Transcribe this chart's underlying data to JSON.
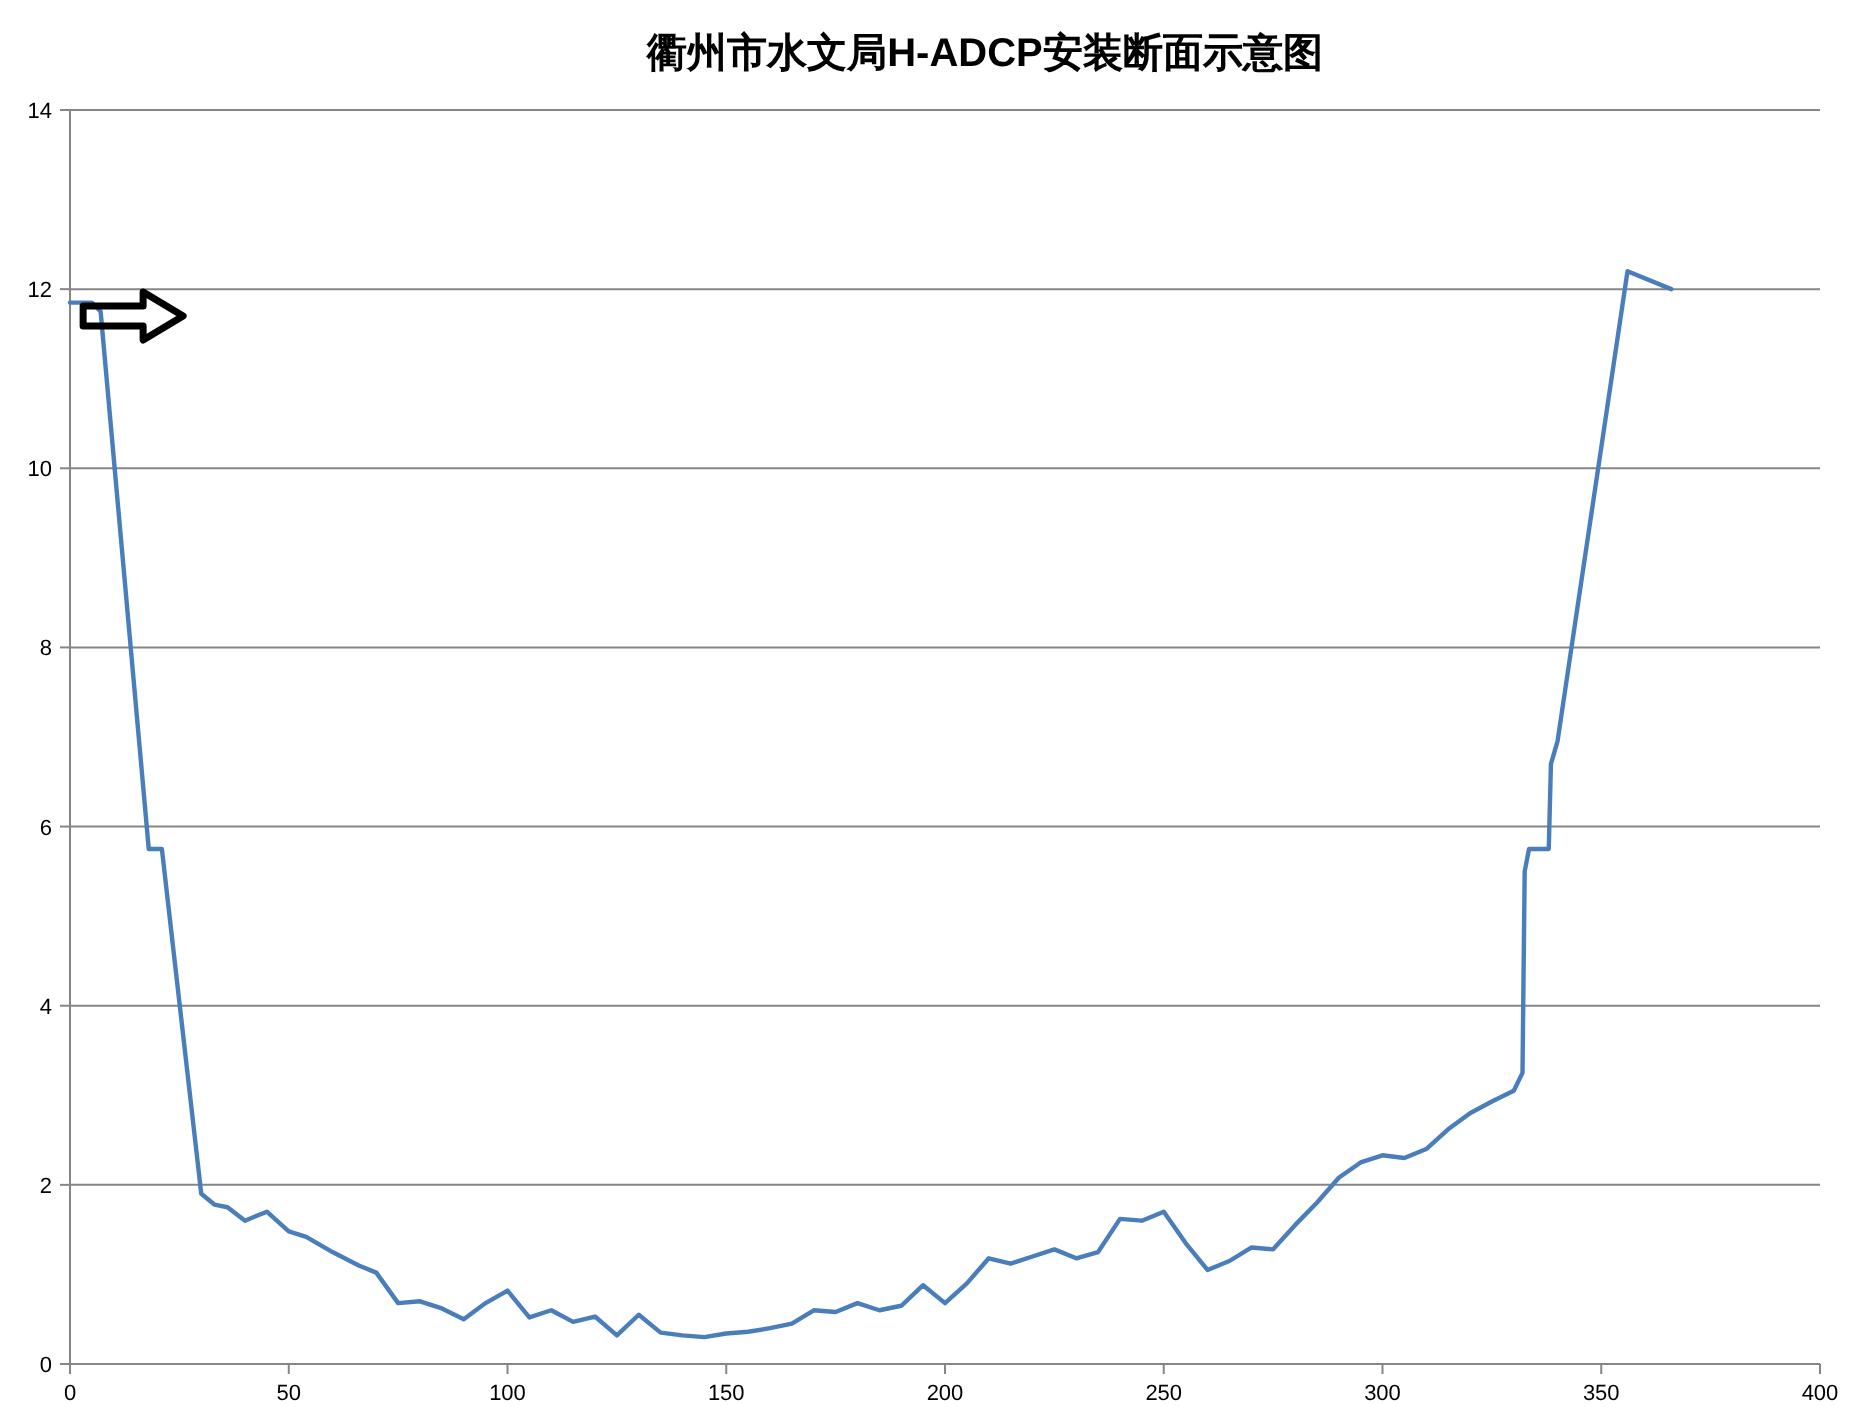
{
  "chart_data": {
    "type": "line",
    "title": "衢州市水文局H-ADCP安装断面示意图",
    "xlim": [
      0,
      400
    ],
    "xticks": [
      0,
      50,
      100,
      150,
      200,
      250,
      300,
      350,
      400
    ],
    "ylim": [
      0,
      14
    ],
    "yticks": [
      0,
      2,
      4,
      6,
      8,
      10,
      12,
      14
    ],
    "grid": "y",
    "marker": "none",
    "line_style": "solid",
    "series": [
      {
        "color": "#4a7ebb",
        "x": [
          0,
          5,
          7,
          18,
          21,
          30,
          33,
          36,
          40,
          45,
          50,
          54,
          60,
          66,
          70,
          75,
          80,
          85,
          90,
          95,
          100,
          105,
          110,
          115,
          120,
          125,
          130,
          135,
          140,
          145,
          150,
          155,
          160,
          165,
          170,
          175,
          180,
          185,
          190,
          195,
          200,
          205,
          210,
          215,
          220,
          225,
          230,
          235,
          240,
          245,
          250,
          255,
          260,
          265,
          270,
          275,
          280,
          285,
          290,
          295,
          300,
          305,
          310,
          315,
          320,
          325,
          330,
          332,
          332.5,
          333.5,
          338,
          338.5,
          340,
          356,
          366
        ],
        "values": [
          11.85,
          11.85,
          11.75,
          5.75,
          5.75,
          1.9,
          1.78,
          1.75,
          1.6,
          1.7,
          1.48,
          1.42,
          1.25,
          1.1,
          1.02,
          0.68,
          0.7,
          0.62,
          0.5,
          0.68,
          0.82,
          0.52,
          0.6,
          0.47,
          0.53,
          0.32,
          0.55,
          0.35,
          0.32,
          0.3,
          0.34,
          0.36,
          0.4,
          0.45,
          0.6,
          0.58,
          0.68,
          0.6,
          0.65,
          0.88,
          0.68,
          0.9,
          1.18,
          1.12,
          1.2,
          1.28,
          1.18,
          1.25,
          1.62,
          1.6,
          1.7,
          1.35,
          1.05,
          1.15,
          1.3,
          1.28,
          1.55,
          1.8,
          2.08,
          2.25,
          2.33,
          2.3,
          2.4,
          2.62,
          2.8,
          2.93,
          3.05,
          3.25,
          5.5,
          5.75,
          5.75,
          6.7,
          6.95,
          12.2,
          12.0
        ]
      }
    ]
  }
}
